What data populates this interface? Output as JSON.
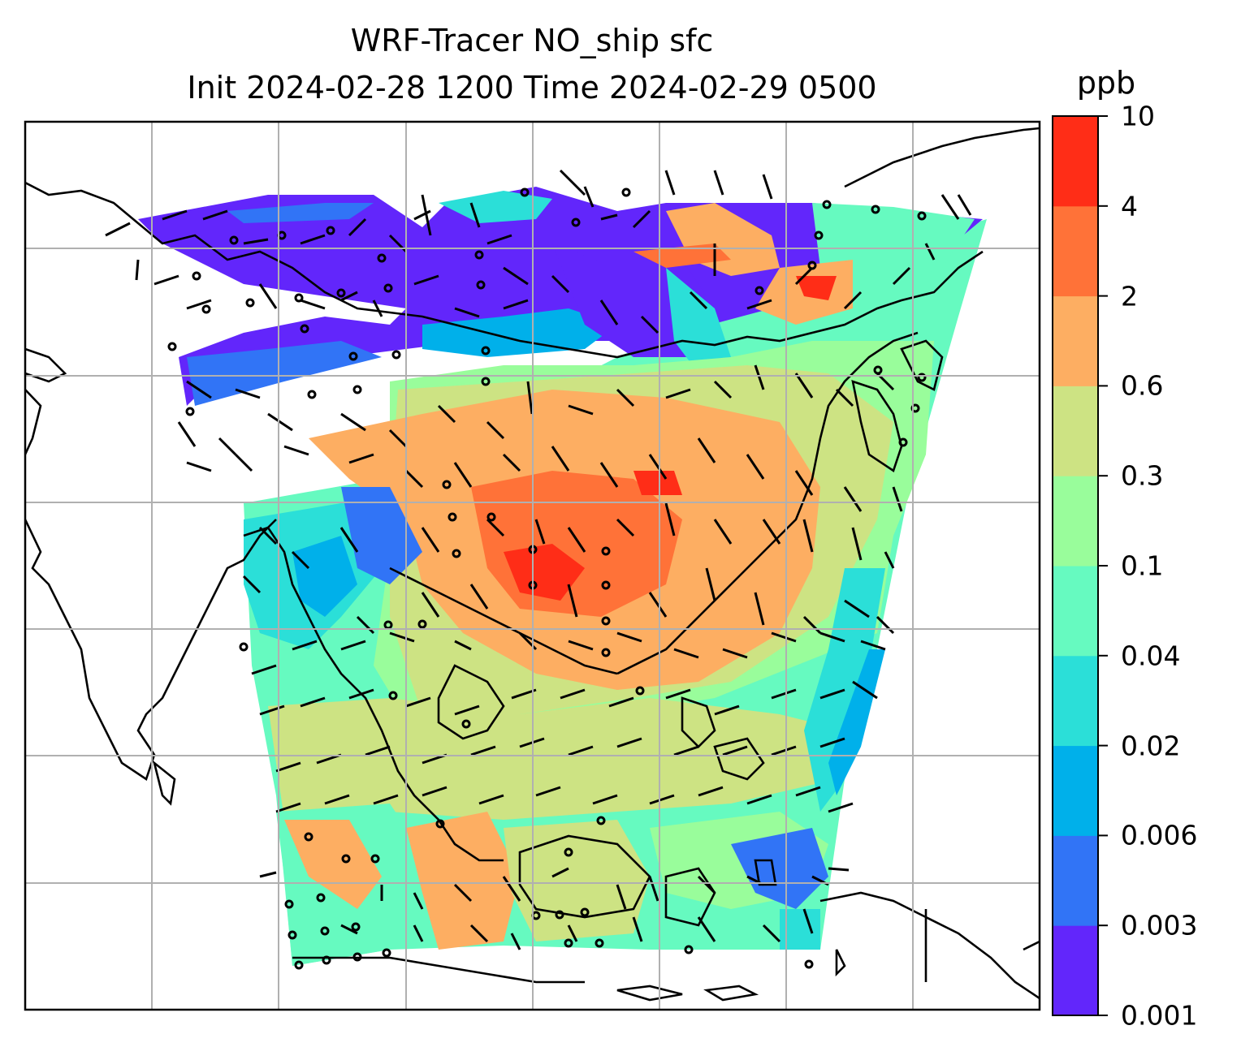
{
  "title": {
    "line1": "WRF-Tracer NO_ship sfc",
    "line2": "Init 2024-02-28 1200 Time 2024-02-29 0500"
  },
  "colorbar": {
    "unit": "ppb",
    "tick_labels": [
      "0.001",
      "0.003",
      "0.006",
      "0.02",
      "0.04",
      "0.1",
      "0.3",
      "0.6",
      "2",
      "4",
      "10"
    ],
    "colors": [
      "#6226fb",
      "#3174f6",
      "#00b0ea",
      "#2bdfd8",
      "#66fac0",
      "#99fd9b",
      "#cde383",
      "#fdae62",
      "#ff7238",
      "#ff2d17"
    ]
  },
  "map": {
    "field_colors": {
      "background_white": "#ffffff",
      "coastline": "#000000",
      "gridline": "#b0b0b0"
    }
  }
}
